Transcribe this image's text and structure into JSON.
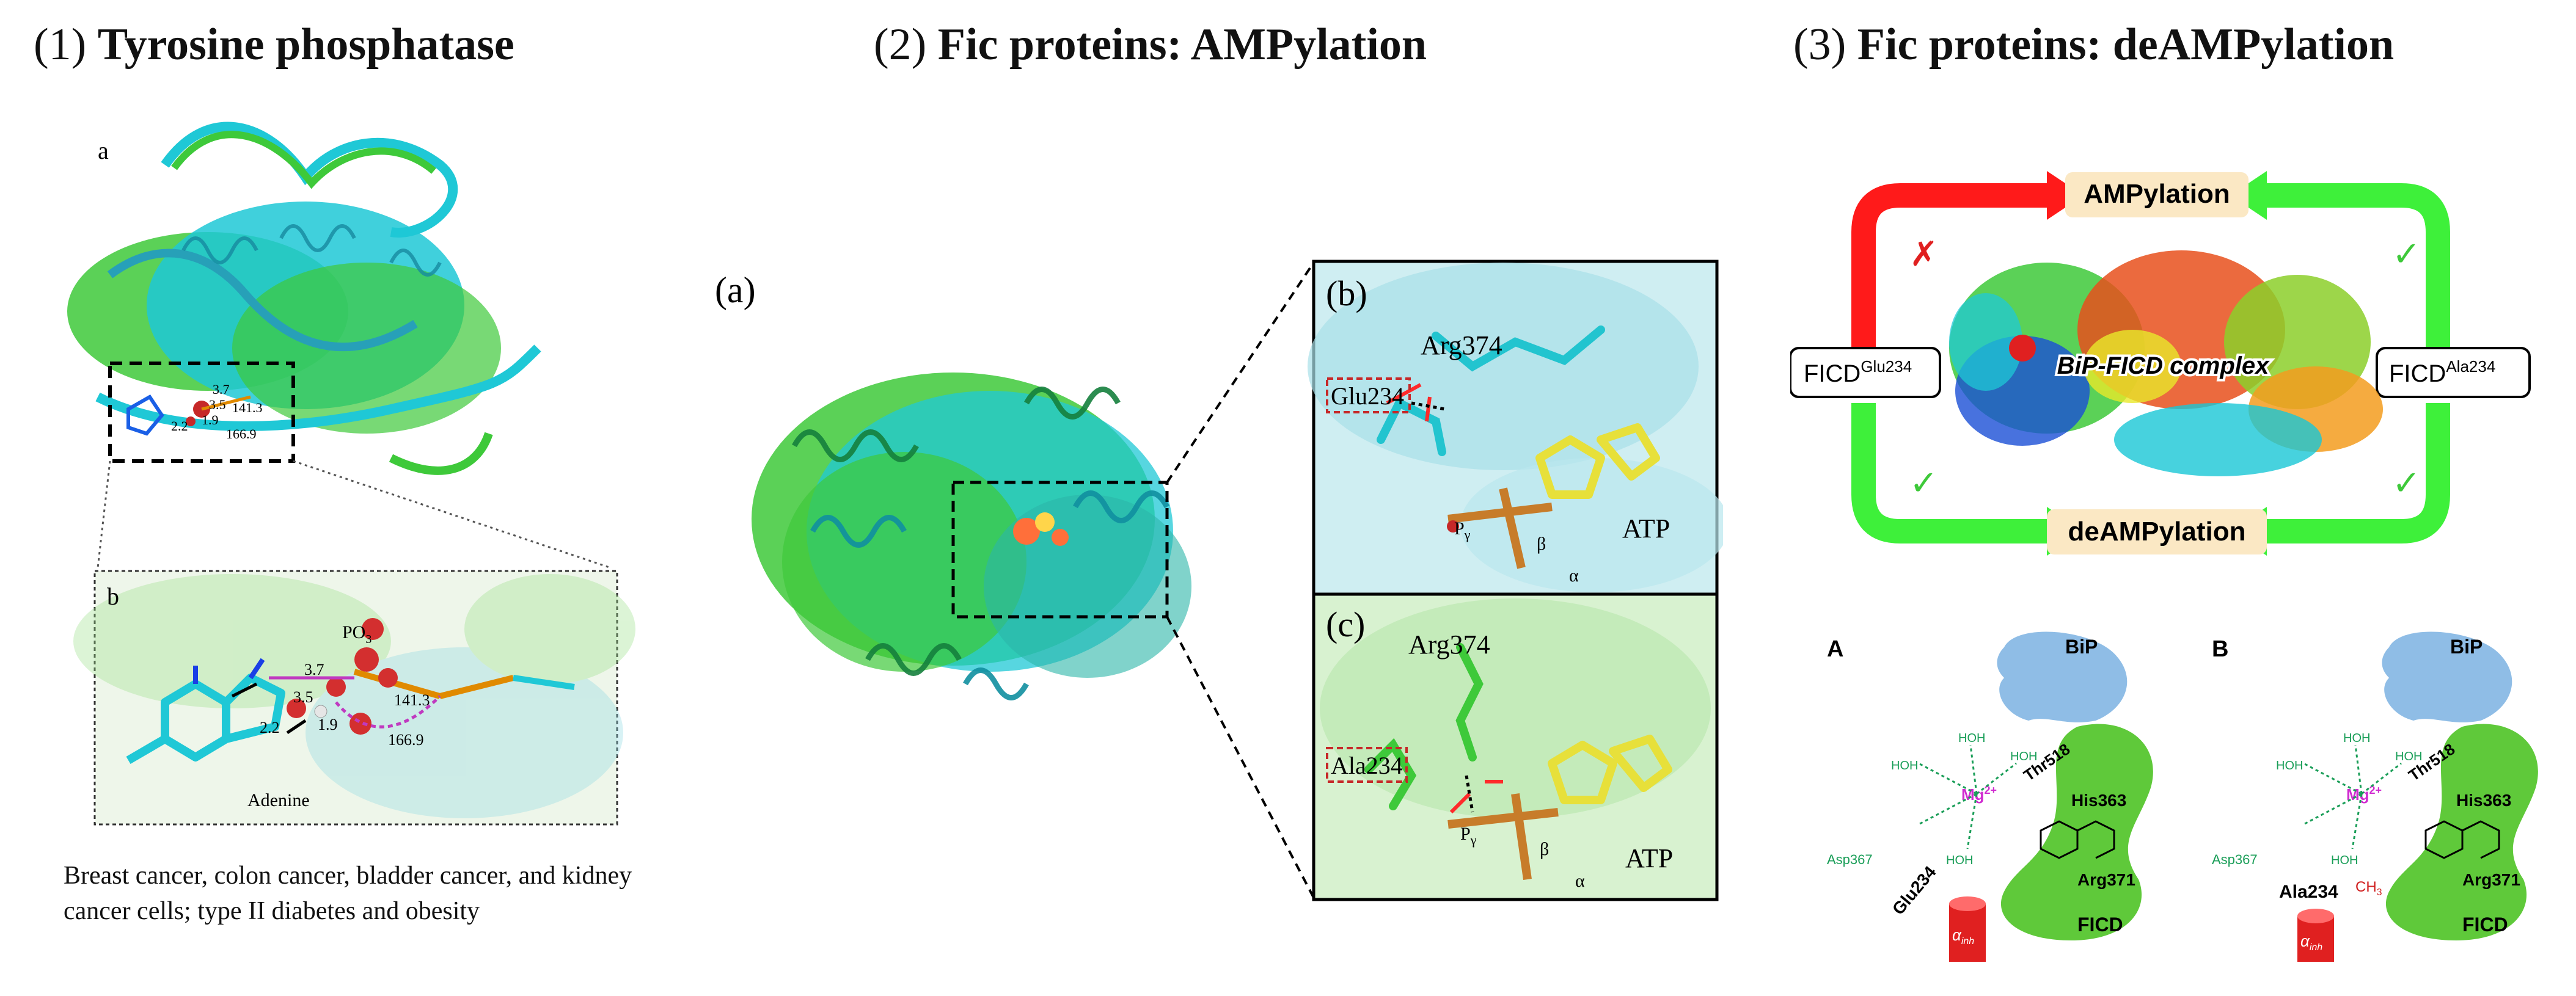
{
  "panel1": {
    "number": "(1)",
    "title": "Tyrosine phosphatase",
    "label_a": "a",
    "label_b": "b",
    "inset_labels": {
      "v37": "3.7",
      "v35": "3.5",
      "v19": "1.9",
      "v22": "2.2",
      "v14": "141.3",
      "v16": "166.9"
    },
    "zoom_labels": {
      "po3": "PO",
      "po3_sub": "3",
      "v37": "3.7",
      "v35": "3.5",
      "v19": "1.9",
      "v22": "2.2",
      "v1413": "141.3",
      "v1669": "166.9",
      "adenine": "Adenine"
    },
    "caption": "Breast cancer, colon cancer, bladder cancer, and kidney cancer cells; type II diabetes and obesity"
  },
  "panel2": {
    "number": "(2)",
    "title": "Fic proteins: AMPylation",
    "label_a": "(a)",
    "label_b": "(b)",
    "label_c": "(c)",
    "b_labels": {
      "arg": "Arg374",
      "glu": "Glu234",
      "atp": "ATP",
      "pg": "P",
      "pg_sub": "γ",
      "beta": "β",
      "alpha": "α"
    },
    "c_labels": {
      "arg": "Arg374",
      "ala": "Ala234",
      "atp": "ATP",
      "pg": "P",
      "pg_sub": "γ",
      "beta": "β",
      "alpha": "α"
    }
  },
  "panel3": {
    "number": "(3)",
    "title": "Fic proteins: deAMPylation",
    "ampylation": "AMPylation",
    "deampylation": "deAMPylation",
    "ficd_glu_main": "FICD",
    "ficd_glu_sup": "Glu234",
    "ficd_ala_main": "FICD",
    "ficd_ala_sup": "Ala234",
    "complex": "BiP-FICD complex",
    "cross": "✗",
    "check": "✓",
    "label_A": "A",
    "label_B": "B",
    "A": {
      "bip": "BiP",
      "thr": "Thr518",
      "his": "His363",
      "mg": "Mg",
      "mg_sup": "2+",
      "asp": "Asp367",
      "glu": "Glu234",
      "arg": "Arg371",
      "ficd": "FICD",
      "alpha": "α",
      "alpha_sub": "inh",
      "hoh": "HOH"
    },
    "B": {
      "bip": "BiP",
      "thr": "Thr518",
      "his": "His363",
      "mg": "Mg",
      "mg_sup": "2+",
      "asp": "Asp367",
      "ala": "Ala234",
      "ch3": "CH",
      "ch3_sub": "3",
      "arg": "Arg371",
      "ficd": "FICD",
      "alpha": "α",
      "alpha_sub": "inh",
      "hoh": "HOH"
    }
  },
  "colors": {
    "cyan": "#1fc8d6",
    "green": "#3ec93a",
    "red": "#ff1a1a",
    "arrow_green": "#3ef03a",
    "pill": "#fbe8c4",
    "bip_blue": "#8fbde6",
    "ficd_green": "#5fc93a"
  }
}
